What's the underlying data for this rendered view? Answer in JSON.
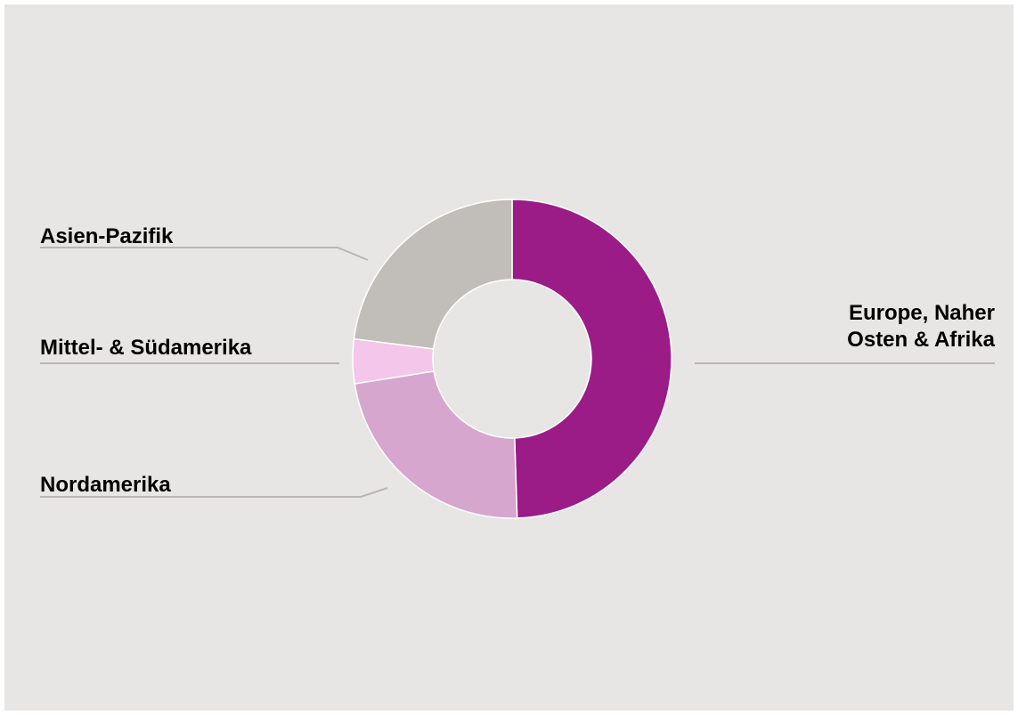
{
  "chart_data": {
    "type": "pie",
    "variant": "donut",
    "title": "",
    "slices": [
      {
        "label": "Europe, Naher Osten & Afrika",
        "label_lines": [
          "Europe, Naher",
          "Osten & Afrika"
        ],
        "value": 49.5,
        "color": "#9b1b87"
      },
      {
        "label": "Nordamerika",
        "label_lines": [
          "Nordamerika"
        ],
        "value": 23.0,
        "color": "#d6a6ce"
      },
      {
        "label": "Mittel- & Südamerika",
        "label_lines": [
          "Mittel- & Südamerika"
        ],
        "value": 4.5,
        "color": "#f4c6ea"
      },
      {
        "label": "Asien-Pazifik",
        "label_lines": [
          "Asien-Pazifik"
        ],
        "value": 23.0,
        "color": "#c1bdb8"
      }
    ],
    "start_angle_deg": 0,
    "direction": "clockwise",
    "legend": "none",
    "leader_line_color": "#b9b6b3",
    "background_color": "#e8e6e4"
  }
}
